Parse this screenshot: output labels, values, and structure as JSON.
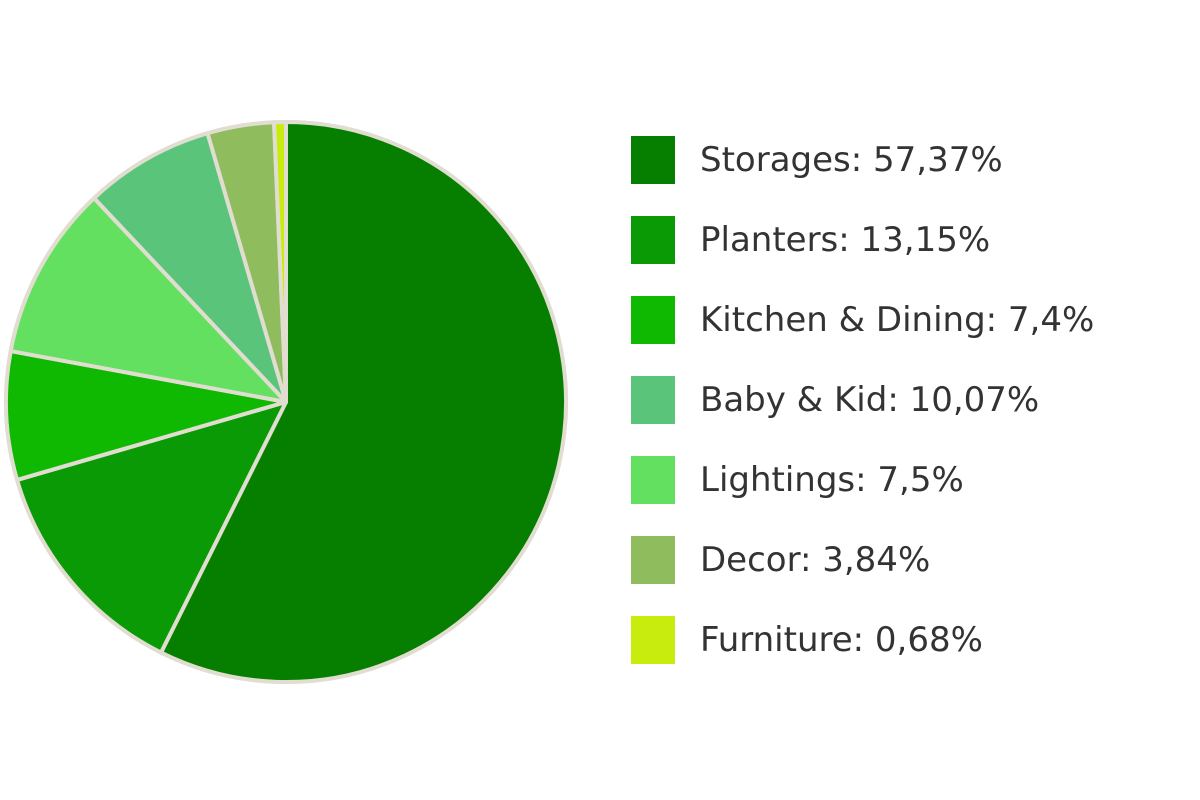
{
  "chart_data": {
    "type": "pie",
    "title": "",
    "series": [
      {
        "name": "Storages",
        "value": 57.37,
        "label": "Storages: 57,37%",
        "color": "#067f01"
      },
      {
        "name": "Planters",
        "value": 13.15,
        "label": "Planters: 13,15%",
        "color": "#0a9a05"
      },
      {
        "name": "Kitchen & Dining",
        "value": 7.4,
        "label": "Kitchen & Dining: 7,4%",
        "color": "#0fb902"
      },
      {
        "name": "Baby & Kid",
        "value": 10.07,
        "label": "Baby & Kid: 10,07%",
        "color": "#64e060"
      },
      {
        "name": "Lightings",
        "value": 7.5,
        "label": "Lightings: 7,5%",
        "color": "#5bc47b"
      },
      {
        "name": "Decor",
        "value": 3.84,
        "label": "Decor: 3,84%",
        "color": "#8fbd5e"
      },
      {
        "name": "Furniture",
        "value": 0.68,
        "label": "Furniture: 0,68%",
        "color": "#c8ec0d"
      }
    ],
    "legend_entries": [
      {
        "label": "Storages: 57,37%",
        "color": "#067f01"
      },
      {
        "label": "Planters: 13,15%",
        "color": "#0a9a05"
      },
      {
        "label": "Kitchen & Dining: 7,4%",
        "color": "#0fb902"
      },
      {
        "label": "Baby & Kid: 10,07%",
        "color": "#5bc47b"
      },
      {
        "label": "Lightings: 7,5%",
        "color": "#64e060"
      },
      {
        "label": "Decor: 3,84%",
        "color": "#8fbd5e"
      },
      {
        "label": "Furniture: 0,68%",
        "color": "#c8ec0d"
      }
    ],
    "legend_position": "right",
    "border_color": "#e2ddd1"
  }
}
